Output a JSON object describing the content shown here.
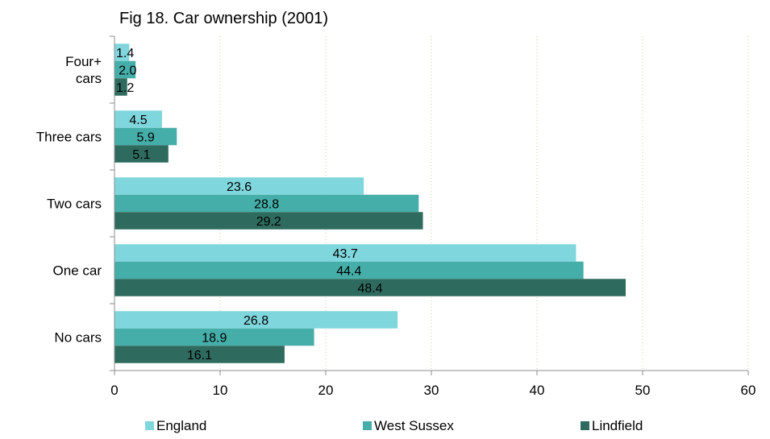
{
  "chart_data": {
    "type": "bar",
    "orientation": "horizontal",
    "title": "Fig 18. Car ownership (2001)",
    "xlabel": "",
    "ylabel": "",
    "categories": [
      "No cars",
      "One car",
      "Two cars",
      "Three cars",
      "Four+ cars"
    ],
    "category_label_lines": [
      [
        "No cars"
      ],
      [
        "One car"
      ],
      [
        "Two cars"
      ],
      [
        "Three cars"
      ],
      [
        "Four+",
        "cars"
      ]
    ],
    "series": [
      {
        "name": "England",
        "color": "#7fd6dc",
        "values": [
          26.8,
          43.7,
          23.6,
          4.5,
          1.4
        ]
      },
      {
        "name": "West Sussex",
        "color": "#45aea8",
        "values": [
          18.9,
          44.4,
          28.8,
          5.9,
          2.0
        ]
      },
      {
        "name": "Lindfield",
        "color": "#2e6b5e",
        "values": [
          16.1,
          48.4,
          29.2,
          5.1,
          1.2
        ]
      }
    ],
    "xlim": [
      0,
      60
    ],
    "xticks": [
      0,
      10,
      20,
      30,
      40,
      50,
      60
    ],
    "grid": "vertical dotted",
    "legend": "bottom",
    "data_label_decimals": 1
  }
}
